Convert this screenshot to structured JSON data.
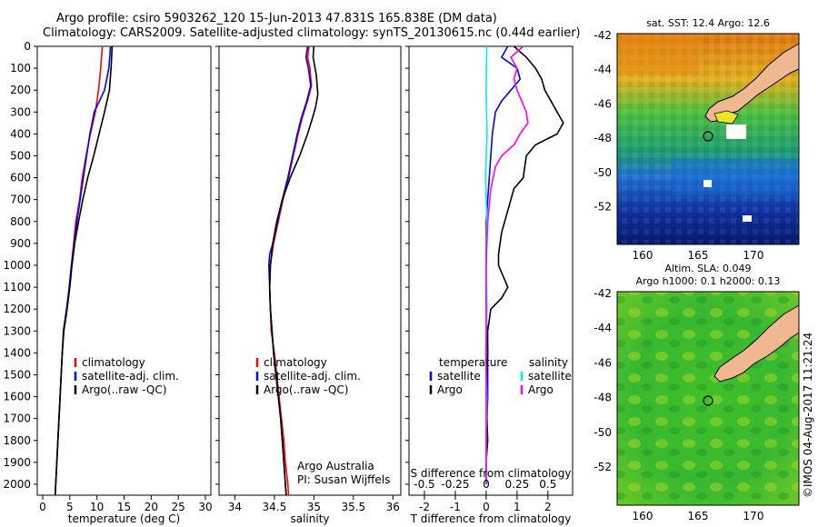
{
  "header": {
    "line1": "Argo profile: csiro 5903262_120 15-Jun-2013 47.831S 165.838E (DM data)",
    "line2": "Climatology: CARS2009. Satellite-adjusted climatology: synTS_20130615.nc (0.44d earlier)"
  },
  "chart_data": [
    {
      "type": "line",
      "panel": "temperature",
      "xlabel": "temperature (deg C)",
      "xlim": [
        -1,
        31
      ],
      "xticks": [
        0,
        5,
        10,
        15,
        20,
        25,
        30
      ],
      "ylim": [
        0,
        2050
      ],
      "yticks": [
        0,
        100,
        200,
        300,
        400,
        500,
        600,
        700,
        800,
        900,
        1000,
        1100,
        1200,
        1300,
        1400,
        1500,
        1600,
        1700,
        1800,
        1900,
        2000
      ],
      "legend": {
        "position": "lower-center",
        "entries": [
          "climatology",
          "satellite-adj. clim.",
          "Argo(..raw -QC)"
        ]
      },
      "series": [
        {
          "name": "climatology",
          "color": "#ff0000",
          "points": [
            [
              11.0,
              0
            ],
            [
              10.7,
              100
            ],
            [
              10.3,
              200
            ],
            [
              9.7,
              300
            ],
            [
              8.8,
              400
            ],
            [
              8.0,
              500
            ],
            [
              7.3,
              600
            ],
            [
              6.8,
              700
            ],
            [
              6.1,
              800
            ],
            [
              5.7,
              900
            ],
            [
              5.3,
              1000
            ],
            [
              4.9,
              1100
            ],
            [
              4.5,
              1200
            ],
            [
              3.9,
              1300
            ],
            [
              3.6,
              1400
            ],
            [
              3.4,
              1500
            ],
            [
              3.2,
              1600
            ],
            [
              3.0,
              1700
            ],
            [
              2.8,
              1800
            ],
            [
              2.6,
              1900
            ],
            [
              2.4,
              2000
            ],
            [
              2.3,
              2050
            ]
          ]
        },
        {
          "name": "satellite-adj. clim.",
          "color": "#0000ff",
          "points": [
            [
              12.5,
              0
            ],
            [
              12.2,
              100
            ],
            [
              11.4,
              200
            ],
            [
              9.5,
              300
            ],
            [
              8.7,
              400
            ],
            [
              8.1,
              500
            ],
            [
              7.5,
              600
            ],
            [
              6.9,
              700
            ],
            [
              6.3,
              800
            ],
            [
              5.8,
              900
            ],
            [
              5.3,
              1000
            ],
            [
              4.9,
              1100
            ],
            [
              4.4,
              1200
            ],
            [
              3.8,
              1300
            ],
            [
              3.6,
              1400
            ],
            [
              3.4,
              1500
            ],
            [
              3.2,
              1600
            ],
            [
              3.0,
              1700
            ],
            [
              2.8,
              1800
            ],
            [
              2.6,
              1900
            ],
            [
              2.4,
              2000
            ],
            [
              2.3,
              2050
            ]
          ]
        },
        {
          "name": "Argo(..raw -QC)",
          "color": "#000000",
          "points": [
            [
              12.8,
              0
            ],
            [
              12.6,
              100
            ],
            [
              12.3,
              200
            ],
            [
              11.4,
              300
            ],
            [
              10.4,
              400
            ],
            [
              9.4,
              500
            ],
            [
              8.3,
              600
            ],
            [
              7.4,
              700
            ],
            [
              6.6,
              800
            ],
            [
              5.9,
              900
            ],
            [
              5.4,
              1000
            ],
            [
              5.0,
              1100
            ],
            [
              4.5,
              1200
            ],
            [
              3.9,
              1300
            ],
            [
              3.6,
              1400
            ],
            [
              3.4,
              1500
            ],
            [
              3.2,
              1600
            ],
            [
              3.0,
              1700
            ],
            [
              2.8,
              1800
            ],
            [
              2.6,
              1900
            ],
            [
              2.4,
              2000
            ],
            [
              2.3,
              2050
            ]
          ]
        }
      ]
    },
    {
      "type": "line",
      "panel": "salinity",
      "xlabel": "salinity",
      "xlim": [
        33.8,
        36.1
      ],
      "xticks": [
        34,
        34.5,
        35,
        35.5,
        36
      ],
      "ylim": [
        0,
        2050
      ],
      "legend": {
        "position": "lower-center",
        "entries": [
          "climatology",
          "satellite-adj. clim.",
          "Argo(..raw -QC)"
        ]
      },
      "annotation": [
        "Argo Australia",
        "PI: Susan Wijffels"
      ],
      "series": [
        {
          "name": "climatology",
          "color": "#ff0000",
          "points": [
            [
              34.94,
              0
            ],
            [
              34.92,
              50
            ],
            [
              34.95,
              100
            ],
            [
              34.97,
              180
            ],
            [
              34.92,
              250
            ],
            [
              34.85,
              330
            ],
            [
              34.8,
              400
            ],
            [
              34.74,
              500
            ],
            [
              34.68,
              600
            ],
            [
              34.61,
              700
            ],
            [
              34.55,
              800
            ],
            [
              34.49,
              900
            ],
            [
              34.45,
              1000
            ],
            [
              34.44,
              1100
            ],
            [
              34.45,
              1200
            ],
            [
              34.46,
              1300
            ],
            [
              34.5,
              1400
            ],
            [
              34.53,
              1500
            ],
            [
              34.56,
              1600
            ],
            [
              34.59,
              1700
            ],
            [
              34.62,
              1800
            ],
            [
              34.64,
              1900
            ],
            [
              34.67,
              2000
            ],
            [
              34.68,
              2050
            ]
          ]
        },
        {
          "name": "satellite-adj. clim.",
          "color": "#0000ff",
          "points": [
            [
              34.92,
              0
            ],
            [
              34.9,
              50
            ],
            [
              34.93,
              100
            ],
            [
              34.96,
              180
            ],
            [
              34.91,
              250
            ],
            [
              34.84,
              330
            ],
            [
              34.79,
              400
            ],
            [
              34.73,
              500
            ],
            [
              34.67,
              600
            ],
            [
              34.6,
              700
            ],
            [
              34.54,
              800
            ],
            [
              34.48,
              900
            ],
            [
              34.44,
              950
            ],
            [
              34.43,
              1000
            ],
            [
              34.44,
              1100
            ],
            [
              34.45,
              1200
            ],
            [
              34.47,
              1300
            ],
            [
              34.49,
              1400
            ],
            [
              34.52,
              1500
            ],
            [
              34.55,
              1600
            ],
            [
              34.58,
              1700
            ],
            [
              34.6,
              1800
            ],
            [
              34.62,
              1900
            ],
            [
              34.64,
              2000
            ],
            [
              34.65,
              2050
            ]
          ]
        },
        {
          "name": "Argo(..raw -QC)",
          "color": "#000000",
          "points": [
            [
              35.0,
              0
            ],
            [
              34.99,
              50
            ],
            [
              35.03,
              130
            ],
            [
              35.05,
              220
            ],
            [
              35.02,
              280
            ],
            [
              34.98,
              330
            ],
            [
              34.92,
              400
            ],
            [
              34.82,
              500
            ],
            [
              34.7,
              600
            ],
            [
              34.6,
              700
            ],
            [
              34.53,
              800
            ],
            [
              34.48,
              900
            ],
            [
              34.45,
              1000
            ],
            [
              34.44,
              1100
            ],
            [
              34.45,
              1200
            ],
            [
              34.47,
              1300
            ],
            [
              34.49,
              1400
            ],
            [
              34.52,
              1500
            ],
            [
              34.55,
              1600
            ],
            [
              34.58,
              1700
            ],
            [
              34.6,
              1800
            ],
            [
              34.62,
              1900
            ],
            [
              34.64,
              2000
            ],
            [
              34.65,
              2050
            ]
          ]
        }
      ]
    },
    {
      "type": "line",
      "panel": "difference",
      "xlabel": "T difference from climatology",
      "xlabel_top": "S difference from climatology",
      "xlim": [
        -2.5,
        2.8
      ],
      "xticks": [
        -2,
        -1,
        0,
        1,
        2
      ],
      "xticks_s": [
        "-0.5",
        "-0.25",
        "0",
        "0.25",
        "0.5"
      ],
      "ylim": [
        0,
        2050
      ],
      "legend": {
        "position": "lower-center",
        "groups": [
          "temperature",
          "salinity"
        ],
        "entries": [
          "satellite",
          "Argo",
          "satellite",
          "Argo"
        ]
      },
      "series": [
        {
          "name": "temperature satellite",
          "color": "#0000ff",
          "points": [
            [
              0.7,
              0
            ],
            [
              0.5,
              50
            ],
            [
              1.0,
              100
            ],
            [
              1.1,
              150
            ],
            [
              0.8,
              200
            ],
            [
              0.5,
              250
            ],
            [
              0.3,
              300
            ],
            [
              0.2,
              400
            ],
            [
              0.15,
              500
            ],
            [
              0.1,
              600
            ],
            [
              0.05,
              700
            ],
            [
              0.0,
              800
            ],
            [
              0.0,
              900
            ],
            [
              0.0,
              1000
            ],
            [
              0.0,
              1200
            ],
            [
              0.05,
              1400
            ],
            [
              0.05,
              1600
            ],
            [
              0.0,
              1800
            ],
            [
              0.0,
              2000
            ]
          ]
        },
        {
          "name": "temperature Argo",
          "color": "#000000",
          "points": [
            [
              0.9,
              0
            ],
            [
              1.3,
              50
            ],
            [
              1.6,
              100
            ],
            [
              1.8,
              150
            ],
            [
              1.9,
              200
            ],
            [
              2.1,
              250
            ],
            [
              2.3,
              300
            ],
            [
              2.5,
              350
            ],
            [
              2.3,
              400
            ],
            [
              1.6,
              450
            ],
            [
              1.3,
              500
            ],
            [
              1.2,
              600
            ],
            [
              0.9,
              650
            ],
            [
              0.8,
              700
            ],
            [
              0.6,
              800
            ],
            [
              0.5,
              850
            ],
            [
              0.4,
              950
            ],
            [
              0.4,
              1000
            ],
            [
              0.7,
              1100
            ],
            [
              0.5,
              1150
            ],
            [
              0.15,
              1200
            ],
            [
              0.05,
              1300
            ],
            [
              0.05,
              1400
            ],
            [
              0.0,
              1600
            ],
            [
              0.05,
              1800
            ],
            [
              0.0,
              1900
            ],
            [
              0.0,
              2000
            ]
          ]
        },
        {
          "name": "salinity satellite",
          "color": "#00eeee",
          "points": [
            [
              0.02,
              0
            ],
            [
              0.0,
              200
            ],
            [
              0.03,
              400
            ],
            [
              -0.02,
              600
            ],
            [
              0.02,
              800
            ],
            [
              0.0,
              1000
            ],
            [
              0.03,
              1200
            ],
            [
              -0.02,
              1400
            ],
            [
              0.02,
              1600
            ],
            [
              0.0,
              1800
            ],
            [
              0.02,
              2000
            ]
          ]
        },
        {
          "name": "salinity Argo",
          "color": "#ff00ff",
          "points": [
            [
              1.2,
              0
            ],
            [
              0.8,
              50
            ],
            [
              1.0,
              100
            ],
            [
              0.9,
              150
            ],
            [
              1.0,
              200
            ],
            [
              1.15,
              250
            ],
            [
              1.3,
              300
            ],
            [
              1.35,
              350
            ],
            [
              1.1,
              400
            ],
            [
              0.9,
              450
            ],
            [
              0.5,
              500
            ],
            [
              0.3,
              550
            ],
            [
              0.15,
              650
            ],
            [
              0.05,
              800
            ],
            [
              0.0,
              1000
            ],
            [
              0.0,
              1200
            ],
            [
              0.0,
              1400
            ],
            [
              0.0,
              1600
            ],
            [
              0.0,
              2000
            ]
          ]
        }
      ]
    }
  ],
  "maps": {
    "top": {
      "title": "sat. SST: 12.4 Argo: 12.6",
      "lat_ticks": [
        "-42",
        "-44",
        "-46",
        "-48",
        "-50",
        "-52"
      ],
      "lon_ticks": [
        "160",
        "165",
        "170"
      ]
    },
    "bottom": {
      "title_line1": "Altim. SLA: 0.049",
      "title_line2": "Argo h1000: 0.1 h2000: 0.13",
      "lat_ticks": [
        "-42",
        "-44",
        "-46",
        "-48",
        "-50",
        "-52"
      ],
      "lon_ticks": [
        "160",
        "165",
        "170"
      ]
    }
  },
  "stamp": "©IMOS 04-Aug-2017 11:21:24"
}
